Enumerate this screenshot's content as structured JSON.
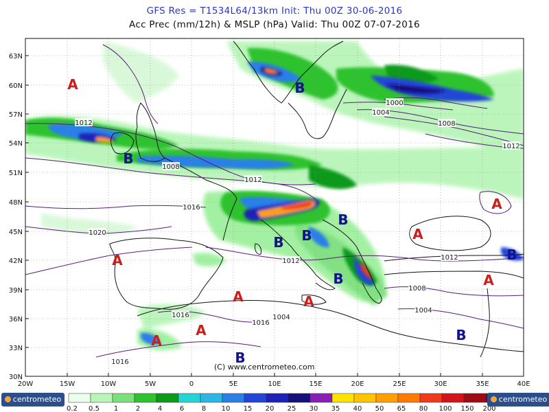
{
  "header": {
    "line1": "GFS Res = T1534L64/13km    Init: Thu 00Z 30-06-2016",
    "line2": "Acc Prec (mm/12h) & MSLP (hPa)  Valid: Thu 00Z 07-07-2016"
  },
  "map": {
    "lat_labels": [
      "63N",
      "60N",
      "57N",
      "54N",
      "51N",
      "48N",
      "45N",
      "42N",
      "39N",
      "36N",
      "33N",
      "30N"
    ],
    "lon_labels": [
      "20W",
      "15W",
      "10W",
      "5W",
      "0",
      "5E",
      "10E",
      "15E",
      "20E",
      "25E",
      "30E",
      "35E",
      "40E"
    ],
    "copyright": "(C) www.centrometeo.com",
    "isobar_labels": [
      "1012",
      "1008",
      "1012",
      "1016",
      "1020",
      "1016",
      "1016",
      "1016",
      "1012",
      "1012",
      "1008",
      "1004",
      "1004",
      "1000",
      "1008",
      "1012",
      "1004"
    ],
    "pressure_centers": [
      {
        "letter": "A",
        "kind": "high"
      },
      {
        "letter": "B",
        "kind": "low"
      },
      {
        "letter": "B",
        "kind": "low"
      },
      {
        "letter": "A",
        "kind": "high"
      },
      {
        "letter": "A",
        "kind": "high"
      },
      {
        "letter": "A",
        "kind": "high"
      },
      {
        "letter": "A",
        "kind": "high"
      },
      {
        "letter": "B",
        "kind": "low"
      },
      {
        "letter": "B",
        "kind": "low"
      },
      {
        "letter": "B",
        "kind": "low"
      },
      {
        "letter": "B",
        "kind": "low"
      },
      {
        "letter": "A",
        "kind": "high"
      },
      {
        "letter": "A",
        "kind": "high"
      },
      {
        "letter": "A",
        "kind": "high"
      },
      {
        "letter": "B",
        "kind": "low"
      },
      {
        "letter": "A",
        "kind": "high"
      },
      {
        "letter": "B",
        "kind": "low"
      },
      {
        "letter": "B",
        "kind": "low"
      }
    ],
    "colors": {
      "high": "#c8201e",
      "low": "#16128c",
      "isobar": "#5a1a78",
      "grid": "#888888",
      "coast": "#111111"
    }
  },
  "legend": {
    "labels": [
      "0.2",
      "0.5",
      "1",
      "2",
      "4",
      "6",
      "8",
      "10",
      "15",
      "20",
      "25",
      "30",
      "35",
      "40",
      "50",
      "65",
      "80",
      "100",
      "150",
      "200"
    ],
    "colors": [
      "#e9ffe9",
      "#b8f5b8",
      "#7be07b",
      "#2fc32f",
      "#0b9a1a",
      "#23d6d6",
      "#2bb6e6",
      "#2a7fe8",
      "#2446d8",
      "#1f22b8",
      "#15107a",
      "#8a1fb8",
      "#ffe300",
      "#ffc400",
      "#ffa000",
      "#ff7a00",
      "#f23a1a",
      "#d4141a",
      "#a00a14",
      "#6a0a0a"
    ],
    "logo_left": "centrometeo",
    "logo_right": "centrometeo"
  }
}
